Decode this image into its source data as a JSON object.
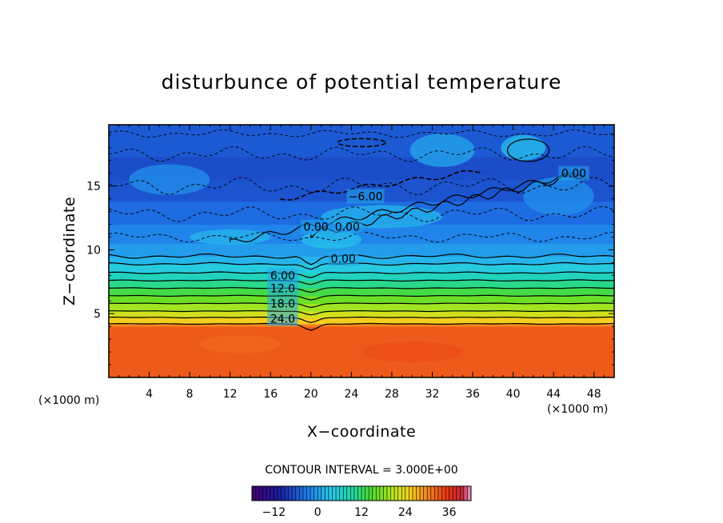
{
  "chart_data": {
    "type": "heatmap",
    "title": "disturbunce of potential temperature",
    "xlabel": "X−coordinate",
    "ylabel": "Z−coordinate",
    "x_unit_left": "(×1000 m)",
    "x_unit_right": "(×1000 m)",
    "x_ticks": [
      4,
      8,
      12,
      16,
      20,
      24,
      28,
      32,
      36,
      40,
      44,
      48
    ],
    "y_ticks": [
      5,
      10,
      15
    ],
    "xlim": [
      0,
      50
    ],
    "ylim": [
      0,
      19.8
    ],
    "contour_interval_text": "CONTOUR INTERVAL = 3.000E+00",
    "contour_labels": [
      {
        "text": "0.00",
        "x": 46.0,
        "y": 16.0
      },
      {
        "text": "−6.00",
        "x": 25.4,
        "y": 14.2
      },
      {
        "text": "0.00",
        "x": 20.5,
        "y": 11.8
      },
      {
        "text": "0.00",
        "x": 23.6,
        "y": 11.8
      },
      {
        "text": "0.00",
        "x": 23.2,
        "y": 9.3
      },
      {
        "text": "6.00",
        "x": 17.2,
        "y": 8.0
      },
      {
        "text": "12.0",
        "x": 17.2,
        "y": 7.0
      },
      {
        "text": "18.0",
        "x": 17.2,
        "y": 5.8
      },
      {
        "text": "24.0",
        "x": 17.2,
        "y": 4.6
      }
    ],
    "profile": [
      {
        "z": 0.0,
        "v": 33
      },
      {
        "z": 4.0,
        "v": 33
      },
      {
        "z": 4.2,
        "v": 27
      },
      {
        "z": 4.7,
        "v": 24
      },
      {
        "z": 5.2,
        "v": 21
      },
      {
        "z": 5.8,
        "v": 18
      },
      {
        "z": 6.4,
        "v": 15
      },
      {
        "z": 7.0,
        "v": 12
      },
      {
        "z": 7.6,
        "v": 9
      },
      {
        "z": 8.2,
        "v": 6
      },
      {
        "z": 8.9,
        "v": 3
      },
      {
        "z": 9.5,
        "v": 1
      },
      {
        "z": 10.5,
        "v": -1
      },
      {
        "z": 12.0,
        "v": -3
      },
      {
        "z": 13.8,
        "v": -5
      },
      {
        "z": 15.5,
        "v": -7
      },
      {
        "z": 17.3,
        "v": -6
      },
      {
        "z": 18.3,
        "v": -5
      },
      {
        "z": 19.8,
        "v": -6
      }
    ],
    "colorbar": {
      "vmin": -18,
      "vmax": 42,
      "ticks": [
        -12,
        0,
        12,
        24,
        36
      ],
      "tick_labels": [
        "−12",
        "0",
        "12",
        "24",
        "36"
      ]
    }
  }
}
